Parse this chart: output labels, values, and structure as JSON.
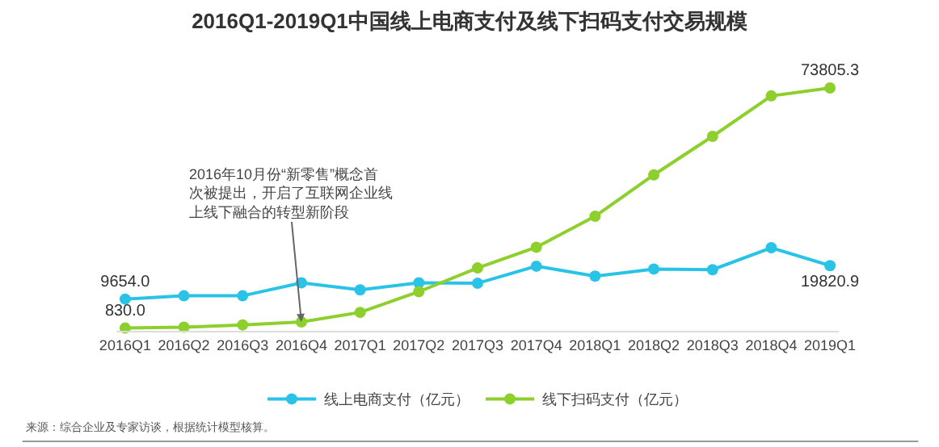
{
  "chart_data": {
    "type": "line",
    "title": "2016Q1-2019Q1中国线上电商支付及线下扫码支付交易规模",
    "categories": [
      "2016Q1",
      "2016Q2",
      "2016Q3",
      "2016Q4",
      "2017Q1",
      "2017Q2",
      "2017Q3",
      "2017Q4",
      "2018Q1",
      "2018Q2",
      "2018Q3",
      "2018Q4",
      "2019Q1"
    ],
    "series": [
      {
        "name": "线上电商支付（亿元）",
        "color": "#29c3e8",
        "values": [
          9654.0,
          10650,
          10650,
          14600,
          12450,
          14600,
          14450,
          19650,
          16600,
          18780,
          18580,
          25250,
          19820.9
        ],
        "value_labels": [
          "9654.0",
          null,
          null,
          null,
          null,
          null,
          null,
          null,
          null,
          null,
          null,
          null,
          "19820.9"
        ]
      },
      {
        "name": "线下扫码支付（亿元）",
        "color": "#8dcf2c",
        "values": [
          830.0,
          1100,
          1800,
          2700,
          5600,
          11900,
          19100,
          25400,
          34800,
          47400,
          59100,
          71400,
          73805.3
        ],
        "value_labels": [
          "830.0",
          null,
          null,
          null,
          null,
          null,
          null,
          null,
          null,
          null,
          null,
          null,
          "73805.3"
        ]
      }
    ],
    "tick_labels": "x",
    "grid": false,
    "marker": "circle",
    "line_style": "solid",
    "legend": "bottom",
    "annotations": [
      {
        "text": "2016年10月份“新零售”概念首次被提出，开启了互联网企业线上线下融合的转型新阶段",
        "x": "2016Q4",
        "y": 2700
      },
      "来源：综合企业及专家访谈，根据统计模型核算。"
    ]
  }
}
